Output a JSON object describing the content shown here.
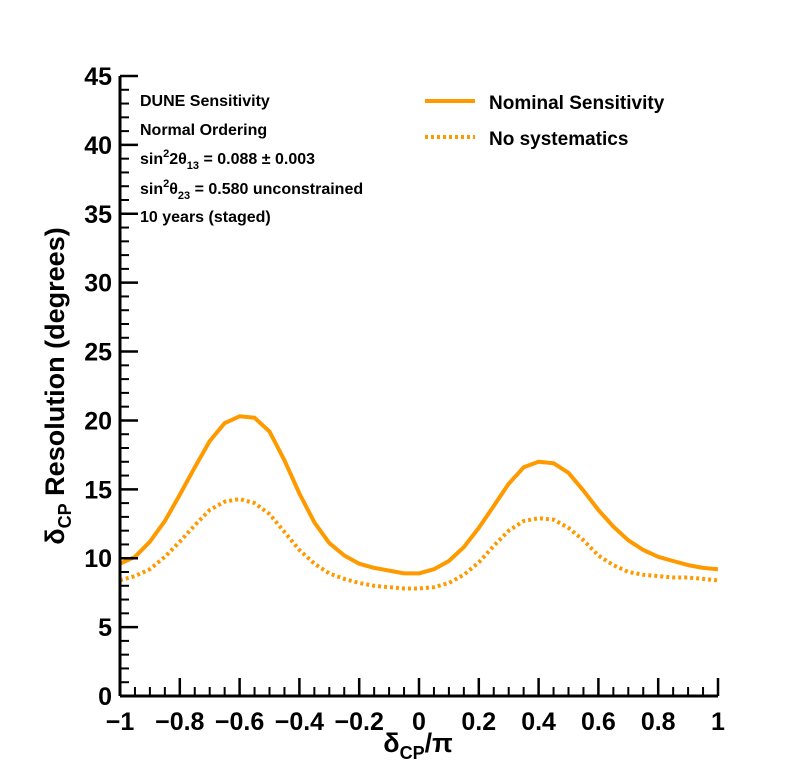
{
  "chart_data": {
    "type": "line",
    "annotations": [
      "DUNE Sensitivity",
      "Normal Ordering",
      "sin²2θ₁₃ = 0.088 ± 0.003",
      "sin²θ₂₃ = 0.580 unconstrained",
      "10 years (staged)"
    ],
    "xlabel": "δCP/π",
    "ylabel": "δCP Resolution (degrees)",
    "xlim": [
      -1,
      1
    ],
    "ylim": [
      0,
      45
    ],
    "xticks": [
      -1,
      -0.8,
      -0.6,
      -0.4,
      -0.2,
      0,
      0.2,
      0.4,
      0.6,
      0.8,
      1
    ],
    "xtick_labels": [
      "−1",
      "−0.8",
      "−0.6",
      "−0.4",
      "−0.2",
      "0",
      "0.2",
      "0.4",
      "0.6",
      "0.8",
      "1"
    ],
    "yticks": [
      0,
      5,
      10,
      15,
      20,
      25,
      30,
      35,
      40,
      45
    ],
    "ytick_labels": [
      "0",
      "5",
      "10",
      "15",
      "20",
      "25",
      "30",
      "35",
      "40",
      "45"
    ],
    "legend_position": "top-right",
    "grid": false,
    "series": [
      {
        "name": "Nominal Sensitivity",
        "color": "#ff9900",
        "style": "solid",
        "x": [
          -1.0,
          -0.95,
          -0.9,
          -0.85,
          -0.8,
          -0.75,
          -0.7,
          -0.65,
          -0.6,
          -0.55,
          -0.5,
          -0.45,
          -0.4,
          -0.35,
          -0.3,
          -0.25,
          -0.2,
          -0.15,
          -0.1,
          -0.05,
          0.0,
          0.05,
          0.1,
          0.15,
          0.2,
          0.25,
          0.3,
          0.35,
          0.4,
          0.45,
          0.5,
          0.55,
          0.6,
          0.65,
          0.7,
          0.75,
          0.8,
          0.85,
          0.9,
          0.95,
          1.0
        ],
        "y": [
          9.6,
          10.1,
          11.2,
          12.7,
          14.6,
          16.6,
          18.5,
          19.8,
          20.3,
          20.2,
          19.2,
          17.1,
          14.7,
          12.6,
          11.1,
          10.2,
          9.6,
          9.3,
          9.1,
          8.9,
          8.9,
          9.2,
          9.8,
          10.8,
          12.2,
          13.8,
          15.4,
          16.6,
          17.0,
          16.9,
          16.2,
          14.9,
          13.5,
          12.3,
          11.3,
          10.6,
          10.1,
          9.8,
          9.5,
          9.3,
          9.2
        ]
      },
      {
        "name": "No systematics",
        "color": "#ff9900",
        "style": "dotted",
        "x": [
          -1.0,
          -0.95,
          -0.9,
          -0.85,
          -0.8,
          -0.75,
          -0.7,
          -0.65,
          -0.6,
          -0.55,
          -0.5,
          -0.45,
          -0.4,
          -0.35,
          -0.3,
          -0.25,
          -0.2,
          -0.15,
          -0.1,
          -0.05,
          0.0,
          0.05,
          0.1,
          0.15,
          0.2,
          0.25,
          0.3,
          0.35,
          0.4,
          0.45,
          0.5,
          0.55,
          0.6,
          0.65,
          0.7,
          0.75,
          0.8,
          0.85,
          0.9,
          0.95,
          1.0
        ],
        "y": [
          8.4,
          8.7,
          9.2,
          10.1,
          11.2,
          12.4,
          13.5,
          14.1,
          14.3,
          14.0,
          13.2,
          11.9,
          10.6,
          9.6,
          8.9,
          8.5,
          8.2,
          8.0,
          7.9,
          7.8,
          7.8,
          7.9,
          8.2,
          8.8,
          9.7,
          10.9,
          12.0,
          12.7,
          12.9,
          12.8,
          12.2,
          11.3,
          10.2,
          9.5,
          9.0,
          8.8,
          8.7,
          8.6,
          8.6,
          8.5,
          8.4
        ]
      }
    ]
  }
}
